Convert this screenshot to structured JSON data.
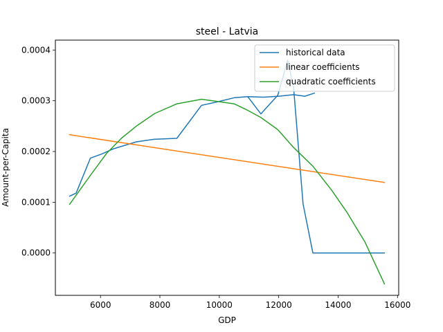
{
  "chart_data": {
    "type": "line",
    "title": "steel - Latvia",
    "xlabel": "GDP",
    "ylabel": "Amount-per-Capita",
    "xlim": [
      4480,
      16040
    ],
    "ylim": [
      -8.35e-05,
      0.0004195
    ],
    "xticks": [
      6000,
      8000,
      10000,
      12000,
      14000,
      16000
    ],
    "xtick_labels": [
      "6000",
      "8000",
      "10000",
      "12000",
      "14000",
      "16000"
    ],
    "yticks": [
      0.0,
      0.0001,
      0.0002,
      0.0003,
      0.0004
    ],
    "ytick_labels": [
      "0.0000",
      "0.0001",
      "0.0002",
      "0.0003",
      "0.0004"
    ],
    "grid": false,
    "legend_position": "top-right",
    "series": [
      {
        "name": "historical data",
        "color": "#1f77b4",
        "x": [
          4960,
          5180,
          5660,
          6040,
          6420,
          7200,
          7800,
          8570,
          9400,
          9950,
          10500,
          10960,
          11400,
          11970,
          12300,
          12500,
          12820,
          13150,
          13500,
          14000,
          14500,
          15000,
          15560
        ],
        "y": [
          0.000112,
          0.000118,
          0.000187,
          0.000195,
          0.000205,
          0.000219,
          0.000224,
          0.000226,
          0.000291,
          0.000298,
          0.000306,
          0.000308,
          0.000274,
          0.000311,
          0.00038,
          0.000327,
          9.7e-05,
          0.0,
          0.0,
          0.0,
          0.0,
          0.0,
          0.0
        ]
      },
      {
        "name": "historical data",
        "color": "#1f77b4",
        "x": [
          10960,
          11500,
          12000,
          12500,
          12880,
          13200
        ],
        "y": [
          0.000308,
          0.000307,
          0.000309,
          0.000312,
          0.000309,
          0.000315
        ]
      },
      {
        "name": "linear coefficients",
        "color": "#ff7f0e",
        "x": [
          4960,
          15560
        ],
        "y": [
          0.000233,
          0.000139
        ]
      },
      {
        "name": "quadratic coefficients",
        "color": "#2ca02c",
        "x": [
          4960,
          5660,
          6200,
          6700,
          7230,
          7830,
          8570,
          9400,
          9950,
          10500,
          10960,
          11400,
          11970,
          12500,
          13150,
          13780,
          14300,
          14900,
          15560
        ],
        "y": [
          9.6e-05,
          0.000153,
          0.000196,
          0.000226,
          0.000251,
          0.000275,
          0.000294,
          0.000303,
          0.0002985,
          0.000294,
          0.000281,
          0.000267,
          0.000243,
          0.000208,
          0.000171,
          0.000124,
          8e-05,
          2.2e-05,
          -6.1e-05
        ]
      }
    ],
    "legend": [
      "historical data",
      "linear coefficients",
      "quadratic coefficients"
    ]
  }
}
